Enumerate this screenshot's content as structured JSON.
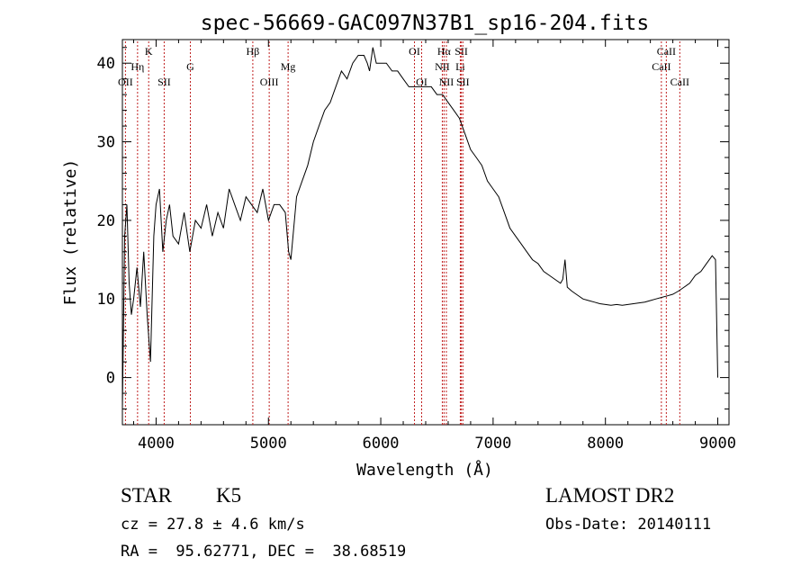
{
  "chart_data": {
    "type": "line",
    "title": "spec-56669-GAC097N37B1_sp16-204.fits",
    "xlabel": "Wavelength (Å)",
    "ylabel": "Flux (relative)",
    "xlim": [
      3700,
      9100
    ],
    "ylim": [
      -6,
      43
    ],
    "xticks": [
      4000,
      5000,
      6000,
      7000,
      8000,
      9000
    ],
    "yticks": [
      0,
      10,
      20,
      30,
      40
    ],
    "grid": false,
    "series": [
      {
        "x": [
          3700,
          3720,
          3740,
          3760,
          3780,
          3800,
          3830,
          3860,
          3890,
          3920,
          3950,
          3980,
          4000,
          4030,
          4060,
          4090,
          4120,
          4150,
          4200,
          4250,
          4300,
          4350,
          4400,
          4450,
          4500,
          4550,
          4600,
          4650,
          4700,
          4750,
          4800,
          4850,
          4900,
          4950,
          5000,
          5050,
          5100,
          5150,
          5180,
          5200,
          5250,
          5300,
          5350,
          5400,
          5450,
          5500,
          5550,
          5600,
          5650,
          5700,
          5750,
          5800,
          5850,
          5880,
          5900,
          5930,
          5960,
          6000,
          6050,
          6100,
          6150,
          6200,
          6250,
          6300,
          6350,
          6400,
          6450,
          6500,
          6550,
          6600,
          6650,
          6700,
          6750,
          6800,
          6850,
          6900,
          6950,
          7000,
          7050,
          7100,
          7150,
          7200,
          7250,
          7300,
          7350,
          7400,
          7450,
          7500,
          7550,
          7600,
          7620,
          7640,
          7660,
          7700,
          7750,
          7800,
          7850,
          7900,
          7950,
          8000,
          8050,
          8100,
          8150,
          8200,
          8250,
          8300,
          8350,
          8400,
          8450,
          8500,
          8550,
          8600,
          8650,
          8700,
          8750,
          8800,
          8850,
          8900,
          8950,
          8980,
          9000
        ],
        "values": [
          -4,
          18,
          22,
          12,
          8,
          10,
          14,
          9,
          16,
          8,
          2,
          18,
          22,
          24,
          16,
          20,
          22,
          18,
          17,
          21,
          16,
          20,
          19,
          22,
          18,
          21,
          19,
          24,
          22,
          20,
          23,
          22,
          21,
          24,
          20,
          22,
          22,
          21,
          16,
          15,
          23,
          25,
          27,
          30,
          32,
          34,
          35,
          37,
          39,
          38,
          40,
          41,
          41,
          40,
          39,
          42,
          40,
          40,
          40,
          39,
          39,
          38,
          37,
          37,
          37,
          37,
          37,
          36,
          36,
          35,
          34,
          33,
          31,
          29,
          28,
          27,
          25,
          24,
          23,
          21,
          19,
          18,
          17,
          16,
          15,
          14.5,
          13.5,
          13,
          12.5,
          12,
          12.5,
          15,
          11.5,
          11,
          10.5,
          10,
          9.8,
          9.6,
          9.4,
          9.3,
          9.2,
          9.3,
          9.2,
          9.3,
          9.4,
          9.5,
          9.6,
          9.8,
          10,
          10.2,
          10.4,
          10.6,
          11,
          11.5,
          12,
          13,
          13.5,
          14.5,
          15.5,
          15,
          0
        ]
      }
    ],
    "lines": [
      {
        "label": "OII",
        "x": 3727,
        "row": 3
      },
      {
        "label": "Hη",
        "x": 3835,
        "row": 2
      },
      {
        "label": "K",
        "x": 3934,
        "row": 1
      },
      {
        "label": "SII",
        "x": 4072,
        "row": 3
      },
      {
        "label": "G",
        "x": 4305,
        "row": 2
      },
      {
        "label": "Hβ",
        "x": 4861,
        "row": 1
      },
      {
        "label": "OIII",
        "x": 5007,
        "row": 3
      },
      {
        "label": "Mg",
        "x": 5175,
        "row": 2
      },
      {
        "label": "OI",
        "x": 6300,
        "row": 1
      },
      {
        "label": "OI",
        "x": 6364,
        "row": 3
      },
      {
        "label": "Hα",
        "x": 6563,
        "row": 1
      },
      {
        "label": "NII",
        "x": 6548,
        "row": 2
      },
      {
        "label": "NII",
        "x": 6584,
        "row": 3
      },
      {
        "label": "SII",
        "x": 6717,
        "row": 1
      },
      {
        "label": "Li",
        "x": 6708,
        "row": 2
      },
      {
        "label": "SII",
        "x": 6731,
        "row": 3
      },
      {
        "label": "CaII",
        "x": 8498,
        "row": 2
      },
      {
        "label": "CaII",
        "x": 8542,
        "row": 1
      },
      {
        "label": "CaII",
        "x": 8662,
        "row": 3
      }
    ]
  },
  "footer": {
    "class": "STAR",
    "subclass": "K5",
    "survey": "LAMOST DR2",
    "cz": "cz = 27.8 ± 4.6 km/s",
    "obs_date": "Obs-Date: 20140111",
    "coords": "RA =  95.62771, DEC =  38.68519"
  }
}
